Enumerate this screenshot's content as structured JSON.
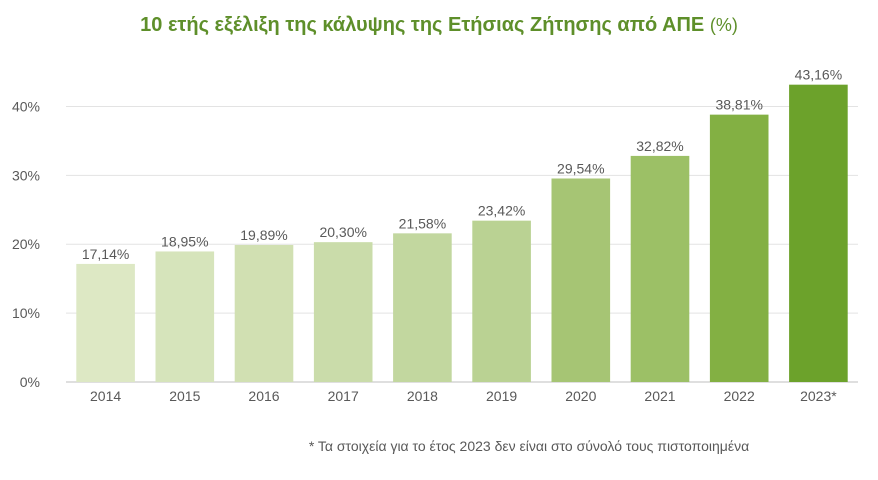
{
  "chart_data": {
    "type": "bar",
    "title": "10 ετής εξέλιξη της κάλυψης της Ετήσιας Ζήτησης από ΑΠΕ",
    "title_unit": "(%)",
    "categories": [
      "2014",
      "2015",
      "2016",
      "2017",
      "2018",
      "2019",
      "2020",
      "2021",
      "2022",
      "2023*"
    ],
    "values": [
      17.14,
      18.95,
      19.89,
      20.3,
      21.58,
      23.42,
      29.54,
      32.82,
      38.81,
      43.16
    ],
    "data_labels": [
      "17,14%",
      "18,95%",
      "19,89%",
      "20,30%",
      "21,58%",
      "23,42%",
      "29,54%",
      "32,82%",
      "38,81%",
      "43,16%"
    ],
    "y_ticks": [
      0,
      10,
      20,
      30,
      40
    ],
    "y_tick_labels": [
      "0%",
      "10%",
      "20%",
      "30%",
      "40%"
    ],
    "ylim": [
      0,
      45
    ],
    "xlabel": "",
    "ylabel": "",
    "grid": true,
    "colors": [
      "#dde8c4",
      "#d6e4bb",
      "#d1e0b2",
      "#cadcaa",
      "#c2d79f",
      "#bad293",
      "#a6c574",
      "#9cc066",
      "#83b043",
      "#6ca22b"
    ],
    "footnote": "* Τα στοιχεία για το έτος 2023 δεν είναι στο σύνολό τους πιστοποιημένα"
  }
}
